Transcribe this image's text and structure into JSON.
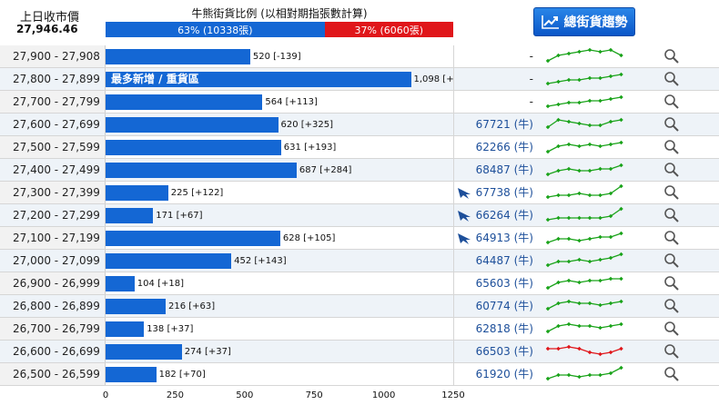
{
  "header": {
    "prev_close_label": "上日收市價",
    "prev_close_value": "27,946.46",
    "ratio_title": "牛熊街貨比例 (以相對期指張數計算)",
    "bull_label": "63% (10338張)",
    "bear_label": "37% (6060張)",
    "bull_pct": 63,
    "trend_button_label": "總街貨趨勢"
  },
  "colors": {
    "bull": "#1467d4",
    "bear": "#e0161a",
    "spark_up": "#1aa31a",
    "spark_down": "#e0161a",
    "code": "#1d4f9a"
  },
  "bar_max": 1250,
  "rows": [
    {
      "range": "27,900 - 27,908",
      "value": 520,
      "label": "520 [-139]",
      "highlight": "",
      "code": "-",
      "signal": false,
      "spark": "green",
      "pts": [
        2,
        5,
        6,
        7,
        8,
        7,
        8,
        5
      ]
    },
    {
      "range": "27,800 - 27,899",
      "value": 1098,
      "label": "1,098 [+392]",
      "highlight": "最多新增 / 重貨區",
      "code": "-",
      "signal": false,
      "spark": "green",
      "pts": [
        2,
        3,
        4,
        4,
        5,
        5,
        6,
        7
      ]
    },
    {
      "range": "27,700 - 27,799",
      "value": 564,
      "label": "564 [+113]",
      "highlight": "",
      "code": "-",
      "signal": false,
      "spark": "green",
      "pts": [
        2,
        3,
        4,
        4,
        5,
        5,
        6,
        7
      ]
    },
    {
      "range": "27,600 - 27,699",
      "value": 620,
      "label": "620 [+325]",
      "highlight": "",
      "code": "67721 (牛)",
      "signal": false,
      "spark": "green",
      "pts": [
        3,
        7,
        6,
        5,
        4,
        4,
        6,
        7
      ]
    },
    {
      "range": "27,500 - 27,599",
      "value": 631,
      "label": "631 [+193]",
      "highlight": "",
      "code": "62266 (牛)",
      "signal": false,
      "spark": "green",
      "pts": [
        2,
        5,
        6,
        5,
        6,
        5,
        6,
        7
      ]
    },
    {
      "range": "27,400 - 27,499",
      "value": 687,
      "label": "687 [+284]",
      "highlight": "",
      "code": "68487 (牛)",
      "signal": false,
      "spark": "green",
      "pts": [
        2,
        4,
        5,
        4,
        4,
        5,
        5,
        7
      ]
    },
    {
      "range": "27,300 - 27,399",
      "value": 225,
      "label": "225 [+122]",
      "highlight": "",
      "code": "67738 (牛)",
      "signal": true,
      "spark": "green",
      "pts": [
        2,
        3,
        3,
        4,
        3,
        3,
        4,
        8
      ]
    },
    {
      "range": "27,200 - 27,299",
      "value": 171,
      "label": "171 [+67]",
      "highlight": "",
      "code": "66264 (牛)",
      "signal": true,
      "spark": "green",
      "pts": [
        2,
        3,
        3,
        3,
        3,
        3,
        4,
        8
      ]
    },
    {
      "range": "27,100 - 27,199",
      "value": 628,
      "label": "628 [+105]",
      "highlight": "",
      "code": "64913 (牛)",
      "signal": true,
      "spark": "green",
      "pts": [
        2,
        4,
        4,
        3,
        4,
        5,
        5,
        7
      ]
    },
    {
      "range": "27,000 - 27,099",
      "value": 452,
      "label": "452 [+143]",
      "highlight": "",
      "code": "64487 (牛)",
      "signal": false,
      "spark": "green",
      "pts": [
        2,
        4,
        4,
        5,
        4,
        5,
        6,
        8
      ]
    },
    {
      "range": "26,900 - 26,999",
      "value": 104,
      "label": "104 [+18]",
      "highlight": "",
      "code": "65603 (牛)",
      "signal": false,
      "spark": "green",
      "pts": [
        2,
        5,
        6,
        5,
        6,
        6,
        7,
        7
      ]
    },
    {
      "range": "26,800 - 26,899",
      "value": 216,
      "label": "216 [+63]",
      "highlight": "",
      "code": "60774 (牛)",
      "signal": false,
      "spark": "green",
      "pts": [
        3,
        6,
        7,
        6,
        6,
        5,
        6,
        7
      ]
    },
    {
      "range": "26,700 - 26,799",
      "value": 138,
      "label": "138 [+37]",
      "highlight": "",
      "code": "62818 (牛)",
      "signal": false,
      "spark": "green",
      "pts": [
        3,
        6,
        7,
        6,
        6,
        5,
        6,
        7
      ]
    },
    {
      "range": "26,600 - 26,699",
      "value": 274,
      "label": "274 [+37]",
      "highlight": "",
      "code": "66503 (牛)",
      "signal": false,
      "spark": "red",
      "pts": [
        6,
        6,
        7,
        6,
        4,
        3,
        4,
        6
      ]
    },
    {
      "range": "26,500 - 26,599",
      "value": 182,
      "label": "182 [+70]",
      "highlight": "",
      "code": "61920 (牛)",
      "signal": false,
      "spark": "green",
      "pts": [
        2,
        4,
        4,
        3,
        4,
        4,
        5,
        8
      ]
    }
  ],
  "axis_ticks": [
    "0",
    "250",
    "500",
    "750",
    "1000",
    "1250"
  ]
}
